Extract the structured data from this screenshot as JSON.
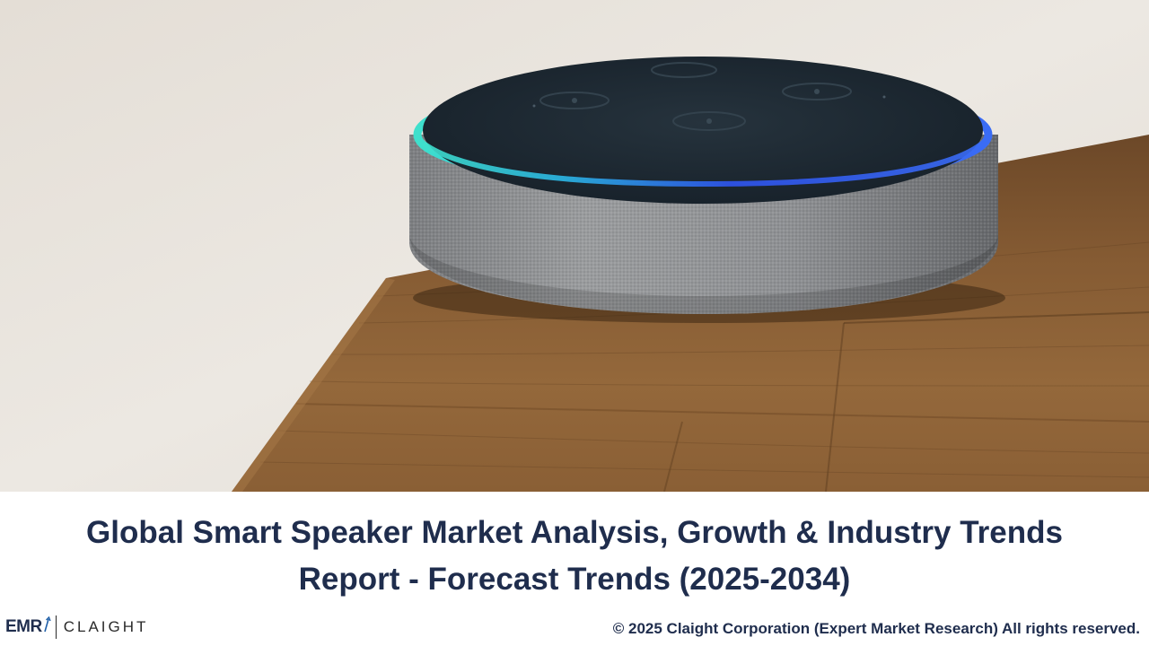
{
  "title": {
    "line1": "Global Smart Speaker Market Analysis, Growth & Industry Trends",
    "line2": "Report - Forecast Trends (2025-2034)"
  },
  "footer": {
    "copyright": "© 2025 Claight Corporation (Expert Market Research) All rights reserved.",
    "logo_primary": "EMR",
    "logo_secondary": "CLAIGHT"
  },
  "hero": {
    "subject": "smart-speaker-on-wooden-table"
  },
  "colors": {
    "title": "#1f2d4d",
    "wall": "#e9e4dd",
    "wood": "#7a5330",
    "speaker_fabric": "#8a8c8f",
    "speaker_top": "#1e2a33",
    "light_ring_teal": "#2ed4c8",
    "light_ring_blue": "#2f55f0"
  }
}
